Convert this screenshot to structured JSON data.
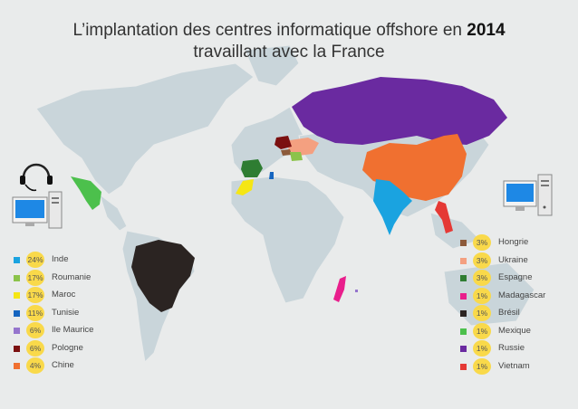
{
  "title": {
    "line1_prefix": "L’implantation des centres informatique offshore en ",
    "line1_year": "2014",
    "line2": "travaillant avec la France"
  },
  "icons": [
    "headset-computer-icon",
    "computer-icon"
  ],
  "legend_left": [
    {
      "pct": "24%",
      "label": "Inde",
      "color": "#1aa3e0"
    },
    {
      "pct": "17%",
      "label": "Roumanie",
      "color": "#8bc34a"
    },
    {
      "pct": "17%",
      "label": "Maroc",
      "color": "#f5e614"
    },
    {
      "pct": "11%",
      "label": "Tunisie",
      "color": "#1565c0"
    },
    {
      "pct": "6%",
      "label": "Ile Maurice",
      "color": "#9575cd"
    },
    {
      "pct": "6%",
      "label": "Pologne",
      "color": "#7b1010"
    },
    {
      "pct": "4%",
      "label": "Chine",
      "color": "#f07030"
    }
  ],
  "legend_right": [
    {
      "pct": "3%",
      "label": "Hongrie",
      "color": "#8d5a3a"
    },
    {
      "pct": "3%",
      "label": "Ukraine",
      "color": "#f4a080"
    },
    {
      "pct": "3%",
      "label": "Espagne",
      "color": "#2e7d32"
    },
    {
      "pct": "1%",
      "label": "Madagascar",
      "color": "#e91e8c"
    },
    {
      "pct": "1%",
      "label": "Brésil",
      "color": "#2b2422"
    },
    {
      "pct": "1%",
      "label": "Mexique",
      "color": "#4cc04c"
    },
    {
      "pct": "1%",
      "label": "Russie",
      "color": "#6a2aa0"
    },
    {
      "pct": "1%",
      "label": "Vietnam",
      "color": "#e53935"
    }
  ]
}
